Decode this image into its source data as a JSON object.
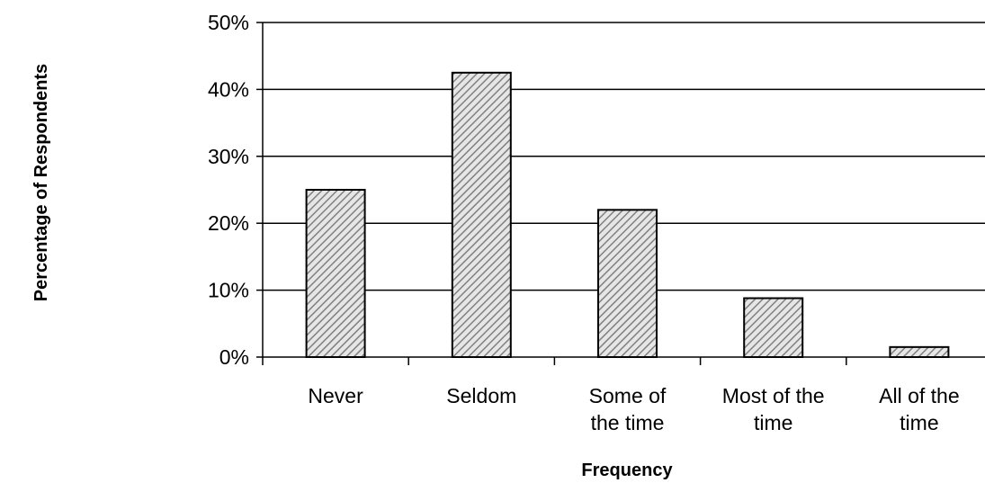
{
  "chart_data": {
    "type": "bar",
    "categories": [
      [
        "Never"
      ],
      [
        "Seldom"
      ],
      [
        "Some of",
        "the time"
      ],
      [
        "Most of the",
        "time"
      ],
      [
        "All of the",
        "time"
      ]
    ],
    "values": [
      25,
      42.5,
      22,
      8.8,
      1.5
    ],
    "value_unit": "%",
    "title": "",
    "xlabel": "Frequency",
    "ylabel": "Percentage  of Respondents",
    "ylim": [
      0,
      50
    ],
    "yticks": [
      0,
      10,
      20,
      30,
      40,
      50
    ],
    "ytick_labels": [
      "0%",
      "10%",
      "20%",
      "30%",
      "40%",
      "50%"
    ],
    "grid": true,
    "legend": "none",
    "colors": {
      "bar_fill": "#d9d9d9",
      "bar_hatch": "#7f7f7f",
      "bar_stroke": "#000000",
      "grid": "#000000"
    }
  }
}
